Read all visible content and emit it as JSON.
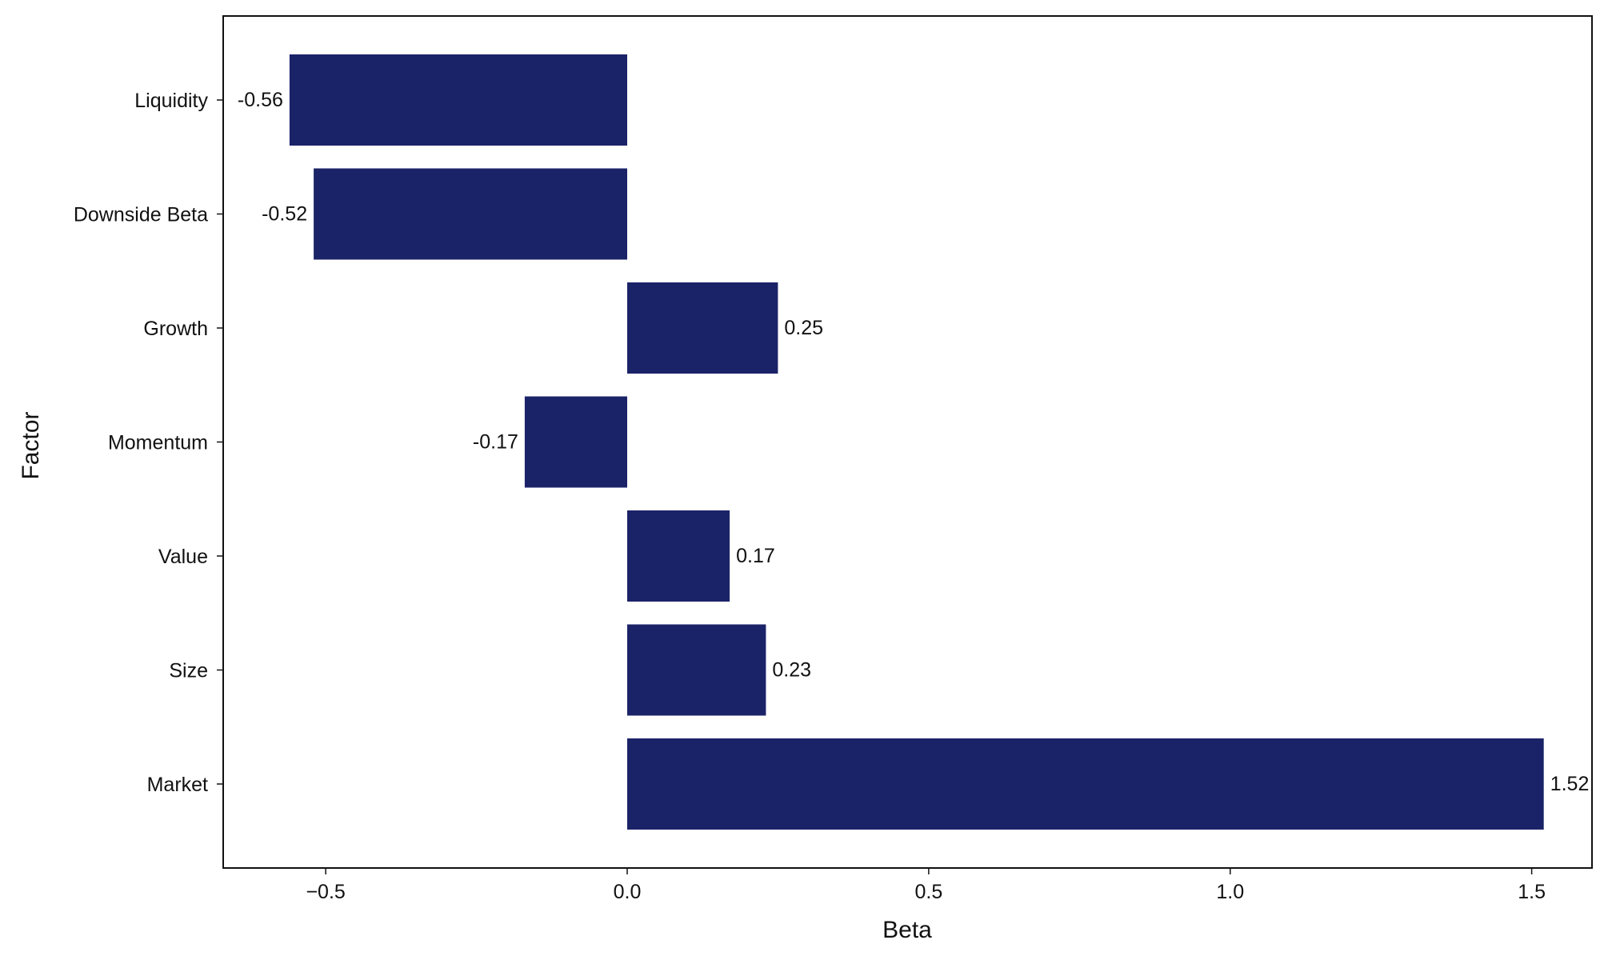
{
  "chart_data": {
    "type": "bar",
    "orientation": "horizontal",
    "title": "",
    "xlabel": "Beta",
    "ylabel": "Factor",
    "categories": [
      "Liquidity",
      "Downside Beta",
      "Growth",
      "Momentum",
      "Value",
      "Size",
      "Market"
    ],
    "values": [
      -0.56,
      -0.52,
      0.25,
      -0.17,
      0.17,
      0.23,
      1.52
    ],
    "data_labels": [
      "-0.56",
      "-0.52",
      "0.25",
      "-0.17",
      "0.17",
      "0.23",
      "1.52"
    ],
    "xlim": [
      -0.67,
      1.6
    ],
    "xticks": [
      -0.5,
      0.0,
      0.5,
      1.0,
      1.5
    ],
    "xtick_labels": [
      "−0.5",
      "0.0",
      "0.5",
      "1.0",
      "1.5"
    ],
    "grid": false,
    "legend": "none",
    "bar_color": "#1b2368"
  }
}
